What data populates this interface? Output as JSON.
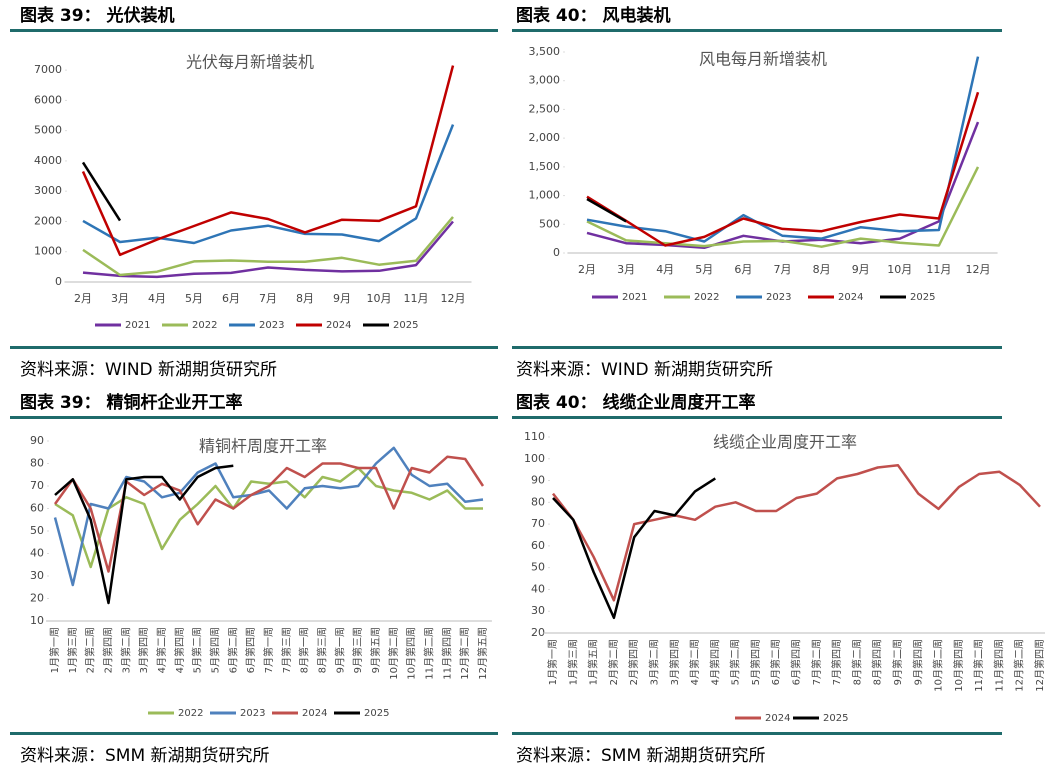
{
  "panels": [
    {
      "heading": "图表 39：  光伏装机",
      "source": "资料来源：WIND  新湖期货研究所"
    },
    {
      "heading": "图表 40：  风电装机",
      "source": "资料来源：WIND  新湖期货研究所"
    },
    {
      "heading": "图表 39：  精铜杆企业开工率",
      "source": "资料来源：SMM  新湖期货研究所"
    },
    {
      "heading": "图表 40：  线缆企业周度开工率",
      "source": "资料来源：SMM  新湖期货研究所"
    }
  ],
  "chart_data": [
    {
      "type": "line",
      "title": "光伏每月新增装机",
      "categories": [
        "2月",
        "3月",
        "4月",
        "5月",
        "6月",
        "7月",
        "8月",
        "9月",
        "10月",
        "11月",
        "12月"
      ],
      "ylim": [
        0,
        7500
      ],
      "yticks": [
        0,
        1000,
        2000,
        3000,
        4000,
        5000,
        6000,
        7000
      ],
      "series": [
        {
          "name": "2021",
          "color": "#7030a0",
          "values": [
            310,
            200,
            170,
            270,
            300,
            480,
            400,
            350,
            370,
            560,
            2000
          ]
        },
        {
          "name": "2022",
          "color": "#9bbb59",
          "values": [
            1060,
            230,
            340,
            680,
            710,
            670,
            670,
            800,
            570,
            700,
            2150
          ]
        },
        {
          "name": "2023",
          "color": "#2e75b6",
          "values": [
            2020,
            1320,
            1460,
            1290,
            1700,
            1860,
            1590,
            1570,
            1350,
            2100,
            5200
          ]
        },
        {
          "name": "2024",
          "color": "#c00000",
          "values": [
            3650,
            900,
            1400,
            1850,
            2300,
            2080,
            1640,
            2060,
            2020,
            2500,
            7150
          ]
        },
        {
          "name": "2025",
          "color": "#000000",
          "values": [
            3950,
            2030,
            null,
            null,
            null,
            null,
            null,
            null,
            null,
            null,
            null
          ]
        }
      ]
    },
    {
      "type": "line",
      "title": "风电每月新增装机",
      "categories": [
        "2月",
        "3月",
        "4月",
        "5月",
        "6月",
        "7月",
        "8月",
        "9月",
        "10月",
        "11月",
        "12月"
      ],
      "ylim": [
        0,
        3500
      ],
      "yticks": [
        0,
        500,
        {
          "value": 1000,
          "label": "1,000"
        },
        {
          "value": 1500,
          "label": "1,500"
        },
        {
          "value": 2000,
          "label": "2,000"
        },
        {
          "value": 2500,
          "label": "2,500"
        },
        {
          "value": 3000,
          "label": "3,000"
        },
        {
          "value": 3500,
          "label": "3,500"
        }
      ],
      "series": [
        {
          "name": "2021",
          "color": "#7030a0",
          "values": [
            350,
            170,
            140,
            90,
            300,
            200,
            230,
            170,
            250,
            550,
            2280
          ]
        },
        {
          "name": "2022",
          "color": "#9bbb59",
          "values": [
            550,
            220,
            170,
            120,
            200,
            210,
            110,
            250,
            180,
            130,
            1500
          ]
        },
        {
          "name": "2023",
          "color": "#2e75b6",
          "values": [
            580,
            460,
            380,
            200,
            660,
            300,
            250,
            450,
            380,
            400,
            3420
          ]
        },
        {
          "name": "2024",
          "color": "#c00000",
          "values": [
            980,
            560,
            130,
            280,
            600,
            420,
            380,
            540,
            670,
            600,
            2800
          ]
        },
        {
          "name": "2025",
          "color": "#000000",
          "values": [
            940,
            550,
            null,
            null,
            null,
            null,
            null,
            null,
            null,
            null,
            null
          ]
        }
      ]
    },
    {
      "type": "line",
      "title": "精铜杆周度开工率",
      "categories": [
        "1月第一周",
        "1月第三周",
        "2月第二周",
        "2月第四周",
        "3月第二周",
        "3月第四周",
        "4月第二周",
        "4月第四周",
        "5月第二周",
        "5月第四周",
        "6月第二周",
        "6月第四周",
        "7月第一周",
        "7月第三周",
        "8月第一周",
        "8月第三周",
        "9月第一周",
        "9月第三周",
        "9月第五周",
        "10月第二周",
        "10月第四周",
        "11月第二周",
        "11月第四周",
        "12月第二周",
        "12月第五周"
      ],
      "ylim": [
        10,
        90
      ],
      "yticks": [
        10,
        20,
        30,
        40,
        50,
        60,
        70,
        80,
        90
      ],
      "series": [
        {
          "name": "2022",
          "color": "#9bbb59",
          "values": [
            62,
            57,
            34,
            60,
            65,
            62,
            42,
            55,
            62,
            70,
            60,
            72,
            71,
            72,
            65,
            74,
            72,
            78,
            70,
            68,
            67,
            64,
            68,
            60,
            60
          ]
        },
        {
          "name": "2023",
          "color": "#4f81bd",
          "values": [
            56,
            26,
            62,
            60,
            74,
            72,
            65,
            67,
            76,
            80,
            65,
            66,
            68,
            60,
            69,
            70,
            69,
            70,
            80,
            87,
            75,
            70,
            71,
            63,
            64
          ]
        },
        {
          "name": "2024",
          "color": "#c0504d",
          "values": [
            62,
            73,
            60,
            32,
            72,
            66,
            71,
            68,
            53,
            64,
            60,
            66,
            70,
            78,
            74,
            80,
            80,
            78,
            78,
            60,
            78,
            76,
            83,
            82,
            70
          ]
        },
        {
          "name": "2025",
          "color": "#000000",
          "values": [
            66,
            73,
            55,
            18,
            73,
            74,
            74,
            64,
            74,
            78,
            79,
            null,
            null,
            null,
            null,
            null,
            null,
            null,
            null,
            null,
            null,
            null,
            null,
            null,
            null
          ]
        }
      ]
    },
    {
      "type": "line",
      "title": "线缆企业周度开工率",
      "categories": [
        "1月第一周",
        "1月第三周",
        "1月第五周",
        "2月第二周",
        "2月第四周",
        "3月第二周",
        "3月第四周",
        "4月第二周",
        "4月第四周",
        "5月第二周",
        "5月第四周",
        "6月第二周",
        "6月第四周",
        "7月第二周",
        "7月第四周",
        "8月第二周",
        "8月第四周",
        "9月第二周",
        "9月第四周",
        "10月第二周",
        "10月第四周",
        "11月第二周",
        "11月第四周",
        "12月第二周",
        "12月第四周"
      ],
      "ylim": [
        20,
        110
      ],
      "yticks": [
        20,
        30,
        40,
        50,
        60,
        70,
        80,
        90,
        100,
        110
      ],
      "series": [
        {
          "name": "2024",
          "color": "#c0504d",
          "values": [
            84,
            72,
            55,
            35,
            70,
            72,
            74,
            72,
            78,
            80,
            76,
            76,
            82,
            84,
            91,
            93,
            96,
            97,
            84,
            77,
            87,
            93,
            94,
            88,
            78
          ]
        },
        {
          "name": "2025",
          "color": "#000000",
          "values": [
            82,
            72,
            48,
            27,
            64,
            76,
            74,
            85,
            91,
            null,
            null,
            null,
            null,
            null,
            null,
            null,
            null,
            null,
            null,
            null,
            null,
            null,
            null,
            null,
            null
          ]
        }
      ]
    }
  ]
}
